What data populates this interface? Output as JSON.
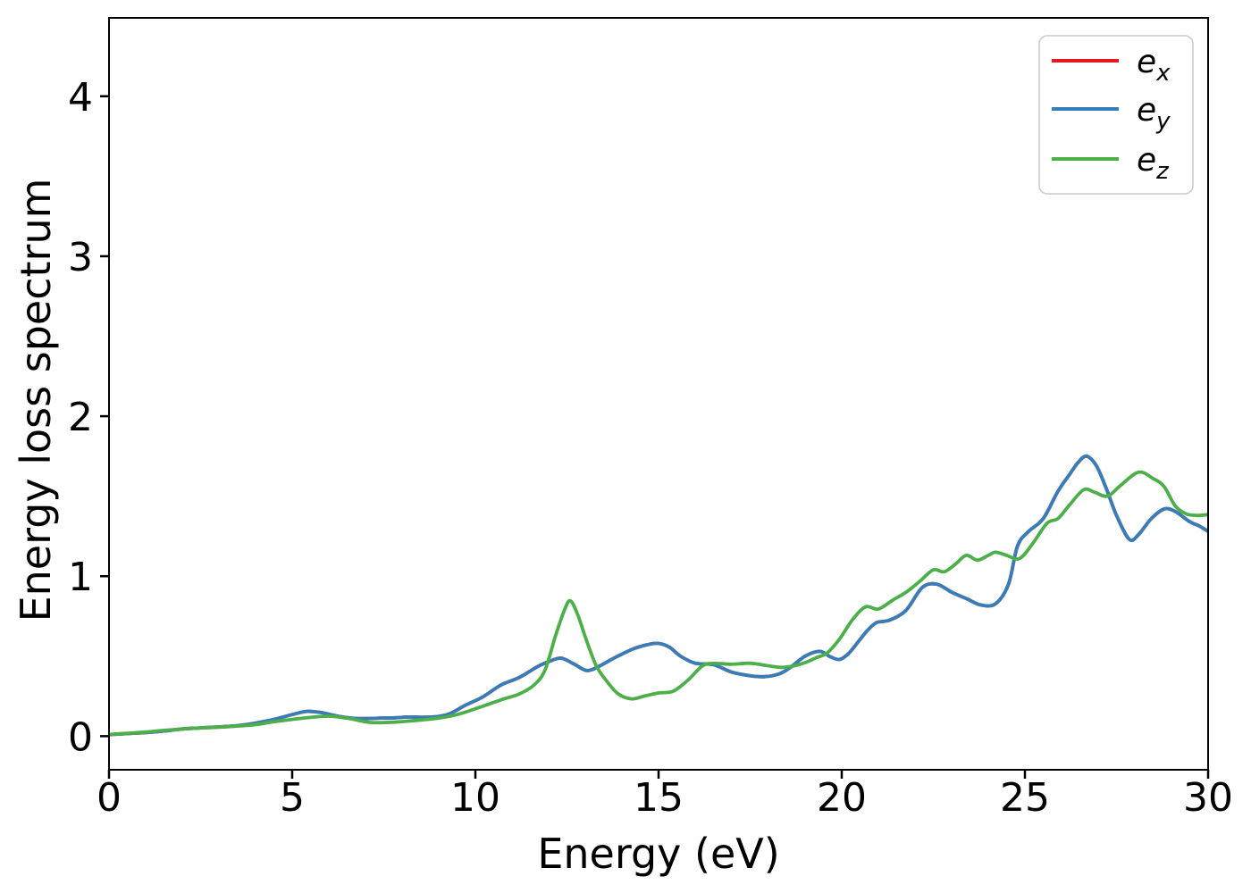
{
  "figure": {
    "background": "#ffffff",
    "text_color": "#000000",
    "spine_color": "#000000"
  },
  "chart_data": {
    "type": "line",
    "title": "",
    "xlabel": "Energy (eV)",
    "ylabel": "Energy loss spectrum",
    "xlim": [
      0,
      30
    ],
    "ylim": [
      -0.21,
      4.49
    ],
    "xticks": [
      0,
      5,
      10,
      15,
      20,
      25,
      30
    ],
    "yticks": [
      0,
      1,
      2,
      3,
      4
    ],
    "grid": false,
    "legend_position": "upper right",
    "series": [
      {
        "name": "e_x",
        "label_main": "e",
        "label_sub": "x",
        "color": "#e41a1c",
        "note": "visually coincides with e_y and is hidden beneath it",
        "points_same_as": "e_y"
      },
      {
        "name": "e_y",
        "label_main": "e",
        "label_sub": "y",
        "color": "#377eb8",
        "points": [
          [
            0,
            0.01
          ],
          [
            0.5,
            0.016
          ],
          [
            1,
            0.022
          ],
          [
            1.5,
            0.032
          ],
          [
            2,
            0.045
          ],
          [
            2.5,
            0.052
          ],
          [
            3,
            0.058
          ],
          [
            3.5,
            0.066
          ],
          [
            4,
            0.082
          ],
          [
            4.5,
            0.105
          ],
          [
            5,
            0.135
          ],
          [
            5.4,
            0.155
          ],
          [
            5.8,
            0.147
          ],
          [
            6.2,
            0.127
          ],
          [
            6.6,
            0.113
          ],
          [
            7,
            0.11
          ],
          [
            7.4,
            0.113
          ],
          [
            7.8,
            0.115
          ],
          [
            8.2,
            0.12
          ],
          [
            8.6,
            0.118
          ],
          [
            9,
            0.124
          ],
          [
            9.3,
            0.14
          ],
          [
            9.7,
            0.19
          ],
          [
            10.2,
            0.245
          ],
          [
            10.7,
            0.32
          ],
          [
            11.2,
            0.367
          ],
          [
            11.7,
            0.435
          ],
          [
            12.05,
            0.47
          ],
          [
            12.35,
            0.487
          ],
          [
            12.7,
            0.45
          ],
          [
            13.05,
            0.41
          ],
          [
            13.4,
            0.44
          ],
          [
            13.8,
            0.49
          ],
          [
            14.3,
            0.545
          ],
          [
            14.7,
            0.572
          ],
          [
            15,
            0.58
          ],
          [
            15.3,
            0.556
          ],
          [
            15.6,
            0.5
          ],
          [
            16,
            0.456
          ],
          [
            16.5,
            0.447
          ],
          [
            17,
            0.4
          ],
          [
            17.5,
            0.378
          ],
          [
            17.9,
            0.372
          ],
          [
            18.3,
            0.39
          ],
          [
            18.6,
            0.43
          ],
          [
            19,
            0.5
          ],
          [
            19.4,
            0.53
          ],
          [
            19.7,
            0.495
          ],
          [
            19.95,
            0.48
          ],
          [
            20.2,
            0.52
          ],
          [
            20.45,
            0.59
          ],
          [
            20.7,
            0.66
          ],
          [
            20.95,
            0.71
          ],
          [
            21.3,
            0.725
          ],
          [
            21.75,
            0.786
          ],
          [
            22.2,
            0.93
          ],
          [
            22.6,
            0.95
          ],
          [
            23,
            0.9
          ],
          [
            23.4,
            0.86
          ],
          [
            23.8,
            0.82
          ],
          [
            24.2,
            0.828
          ],
          [
            24.55,
            0.95
          ],
          [
            24.8,
            1.19
          ],
          [
            25.1,
            1.28
          ],
          [
            25.5,
            1.36
          ],
          [
            25.9,
            1.53
          ],
          [
            26.2,
            1.63
          ],
          [
            26.45,
            1.71
          ],
          [
            26.68,
            1.75
          ],
          [
            26.95,
            1.69
          ],
          [
            27.2,
            1.56
          ],
          [
            27.5,
            1.38
          ],
          [
            27.85,
            1.23
          ],
          [
            28.1,
            1.26
          ],
          [
            28.45,
            1.36
          ],
          [
            28.8,
            1.42
          ],
          [
            29.1,
            1.405
          ],
          [
            29.5,
            1.34
          ],
          [
            29.75,
            1.315
          ],
          [
            30,
            1.28
          ]
        ]
      },
      {
        "name": "e_z",
        "label_main": "e",
        "label_sub": "z",
        "color": "#4daf4a",
        "points": [
          [
            0,
            0.01
          ],
          [
            0.5,
            0.018
          ],
          [
            1,
            0.026
          ],
          [
            1.5,
            0.036
          ],
          [
            2,
            0.045
          ],
          [
            2.5,
            0.051
          ],
          [
            3,
            0.056
          ],
          [
            3.5,
            0.063
          ],
          [
            4,
            0.072
          ],
          [
            4.5,
            0.09
          ],
          [
            5,
            0.105
          ],
          [
            5.5,
            0.117
          ],
          [
            6,
            0.125
          ],
          [
            6.5,
            0.112
          ],
          [
            7,
            0.09
          ],
          [
            7.2,
            0.085
          ],
          [
            7.6,
            0.086
          ],
          [
            8,
            0.091
          ],
          [
            8.5,
            0.101
          ],
          [
            9,
            0.113
          ],
          [
            9.5,
            0.135
          ],
          [
            10,
            0.171
          ],
          [
            10.7,
            0.227
          ],
          [
            11.2,
            0.264
          ],
          [
            11.6,
            0.32
          ],
          [
            11.9,
            0.413
          ],
          [
            12.2,
            0.637
          ],
          [
            12.45,
            0.8
          ],
          [
            12.6,
            0.845
          ],
          [
            12.8,
            0.755
          ],
          [
            13,
            0.62
          ],
          [
            13.3,
            0.44
          ],
          [
            13.6,
            0.34
          ],
          [
            13.9,
            0.264
          ],
          [
            14.26,
            0.233
          ],
          [
            14.6,
            0.25
          ],
          [
            15,
            0.27
          ],
          [
            15.4,
            0.281
          ],
          [
            15.8,
            0.35
          ],
          [
            16.2,
            0.44
          ],
          [
            16.5,
            0.455
          ],
          [
            17,
            0.45
          ],
          [
            17.5,
            0.456
          ],
          [
            18,
            0.44
          ],
          [
            18.35,
            0.43
          ],
          [
            18.7,
            0.44
          ],
          [
            19,
            0.46
          ],
          [
            19.3,
            0.49
          ],
          [
            19.6,
            0.52
          ],
          [
            19.95,
            0.61
          ],
          [
            20.3,
            0.73
          ],
          [
            20.65,
            0.808
          ],
          [
            21,
            0.795
          ],
          [
            21.4,
            0.851
          ],
          [
            21.8,
            0.907
          ],
          [
            22.15,
            0.972
          ],
          [
            22.5,
            1.04
          ],
          [
            22.8,
            1.028
          ],
          [
            23.1,
            1.075
          ],
          [
            23.4,
            1.13
          ],
          [
            23.7,
            1.1
          ],
          [
            24,
            1.13
          ],
          [
            24.2,
            1.15
          ],
          [
            24.5,
            1.13
          ],
          [
            24.85,
            1.11
          ],
          [
            25.2,
            1.2
          ],
          [
            25.6,
            1.33
          ],
          [
            25.9,
            1.36
          ],
          [
            26.2,
            1.44
          ],
          [
            26.6,
            1.54
          ],
          [
            26.9,
            1.525
          ],
          [
            27.25,
            1.5
          ],
          [
            27.6,
            1.565
          ],
          [
            28.1,
            1.65
          ],
          [
            28.5,
            1.61
          ],
          [
            28.8,
            1.56
          ],
          [
            29.1,
            1.44
          ],
          [
            29.4,
            1.39
          ],
          [
            29.7,
            1.38
          ],
          [
            30,
            1.385
          ]
        ]
      }
    ]
  },
  "legend": {
    "border_color": "#cccccc",
    "background": "#ffffff"
  }
}
